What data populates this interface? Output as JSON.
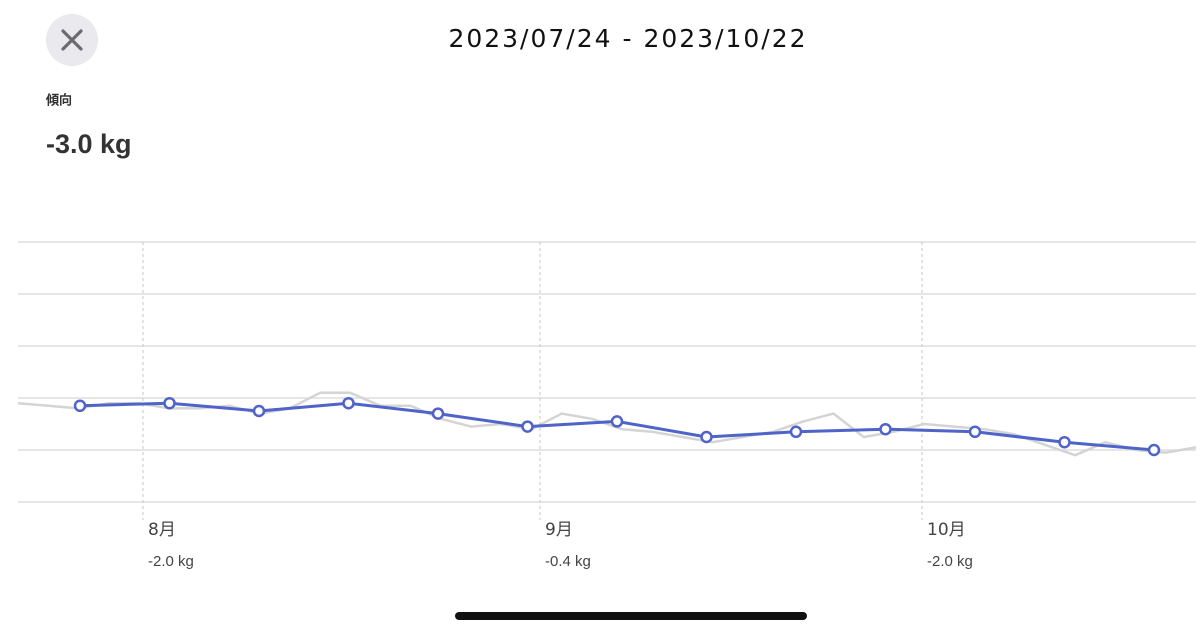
{
  "header": {
    "title": "2023/07/24 - 2023/10/22"
  },
  "summary": {
    "label": "傾向",
    "value": "-3.0 kg"
  },
  "chart_data": {
    "type": "line",
    "ylim": [
      0,
      5
    ],
    "months": [
      "8月",
      "9月",
      "10月"
    ],
    "month_changes": [
      "-2.0 kg",
      "-0.4 kg",
      "-2.0 kg"
    ],
    "series": [
      {
        "name": "daily",
        "color": "#d4d4d4",
        "values": [
          1.9,
          1.85,
          1.8,
          1.9,
          1.9,
          1.8,
          1.8,
          1.85,
          1.7,
          1.8,
          2.1,
          2.1,
          1.85,
          1.85,
          1.6,
          1.45,
          1.5,
          1.4,
          1.7,
          1.6,
          1.4,
          1.35,
          1.25,
          1.15,
          1.25,
          1.35,
          1.55,
          1.7,
          1.25,
          1.35,
          1.5,
          1.45,
          1.4,
          1.3,
          1.1,
          0.9,
          1.15,
          1.0,
          0.95,
          1.05
        ]
      },
      {
        "name": "weekly",
        "color": "#4f63c9",
        "values": [
          1.85,
          1.9,
          1.75,
          1.9,
          1.7,
          1.45,
          1.55,
          1.25,
          1.35,
          1.4,
          1.35,
          1.15,
          1.0
        ]
      }
    ]
  }
}
